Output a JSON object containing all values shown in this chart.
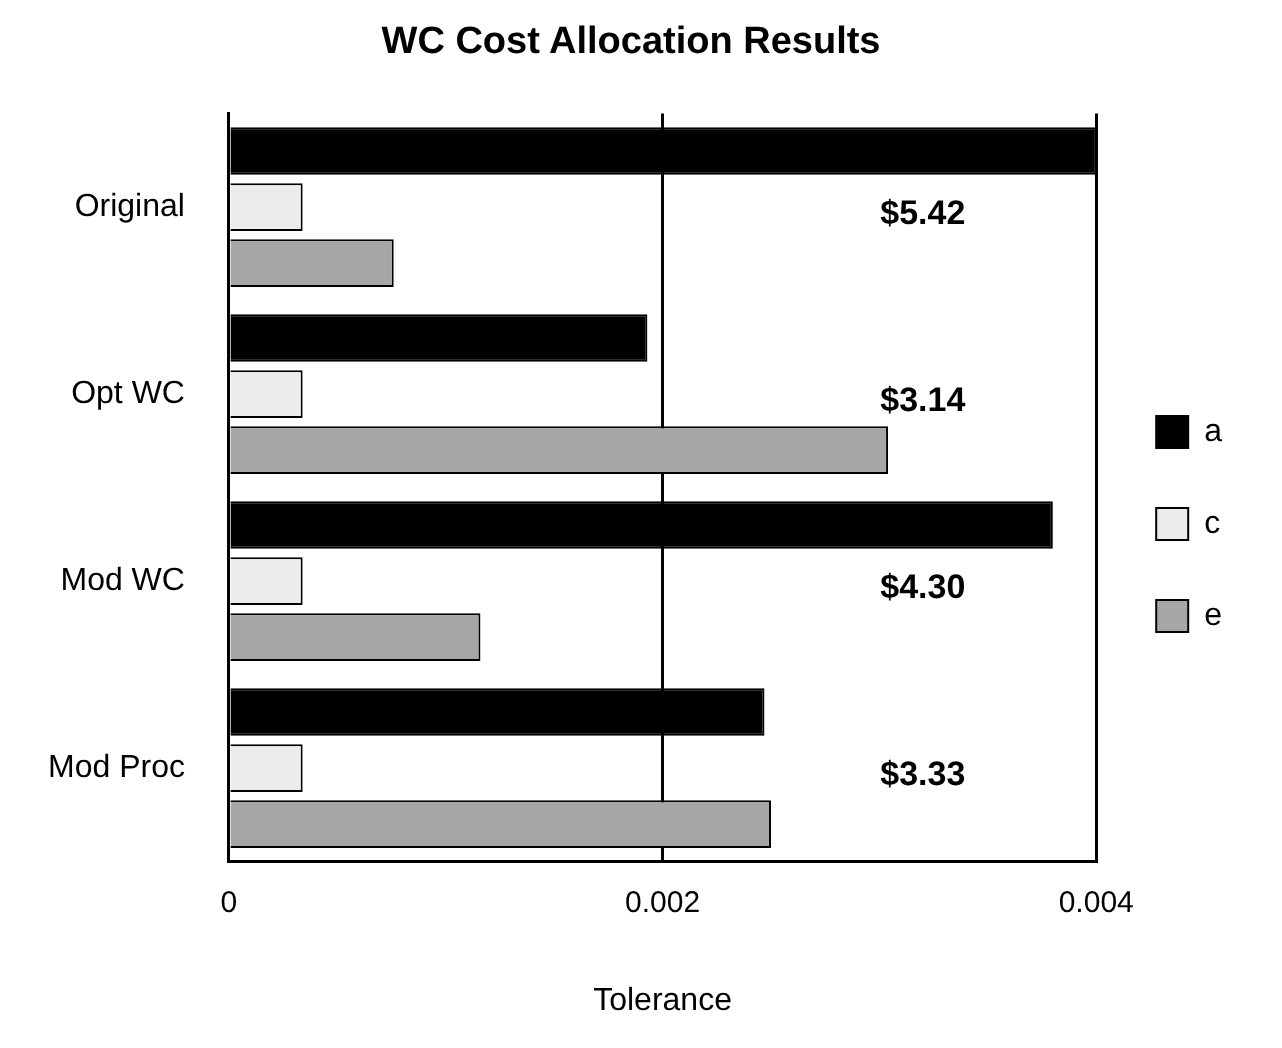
{
  "chart_data": {
    "type": "bar",
    "orientation": "horizontal",
    "title": "WC Cost Allocation Results",
    "xlabel": "Tolerance",
    "categories": [
      "Original",
      "Opt WC",
      "Mod WC",
      "Mod Proc"
    ],
    "series": [
      {
        "name": "a",
        "color": "#000000",
        "values": [
          0.004,
          0.00193,
          0.0038,
          0.00247
        ]
      },
      {
        "name": "c",
        "color": "#ececec",
        "values": [
          0.00034,
          0.00034,
          0.00034,
          0.00034
        ]
      },
      {
        "name": "e",
        "color": "#a6a6a6",
        "values": [
          0.00076,
          0.00304,
          0.00116,
          0.0025
        ]
      }
    ],
    "xlim": [
      0,
      0.004
    ],
    "xticks": [
      0,
      0.002,
      0.004
    ],
    "grid": "x",
    "legend": "right",
    "annotations": [
      "$5.42",
      "$3.14",
      "$4.30",
      "$3.33"
    ]
  }
}
